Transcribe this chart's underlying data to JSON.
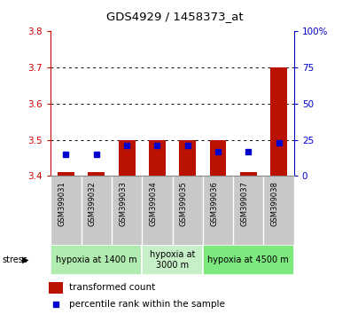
{
  "title": "GDS4929 / 1458373_at",
  "samples": [
    "GSM399031",
    "GSM399032",
    "GSM399033",
    "GSM399034",
    "GSM399035",
    "GSM399036",
    "GSM399037",
    "GSM399038"
  ],
  "red_values": [
    3.41,
    3.41,
    3.5,
    3.5,
    3.5,
    3.5,
    3.41,
    3.7
  ],
  "blue_values": [
    15,
    15,
    21,
    21,
    21,
    17,
    17,
    23
  ],
  "ylim_left": [
    3.4,
    3.8
  ],
  "ylim_right": [
    0,
    100
  ],
  "yticks_left": [
    3.4,
    3.5,
    3.6,
    3.7,
    3.8
  ],
  "yticks_right": [
    0,
    25,
    50,
    75,
    100
  ],
  "ytick_labels_right": [
    "0",
    "25",
    "50",
    "75",
    "100%"
  ],
  "groups": [
    {
      "label": "hypoxia at 1400 m",
      "start": 0,
      "end": 3,
      "color": "#b0ebb0"
    },
    {
      "label": "hypoxia at\n3000 m",
      "start": 3,
      "end": 5,
      "color": "#c8f0c8"
    },
    {
      "label": "hypoxia at 4500 m",
      "start": 5,
      "end": 8,
      "color": "#7de87d"
    }
  ],
  "stress_label": "stress",
  "legend_red": "transformed count",
  "legend_blue": "percentile rank within the sample",
  "bar_color": "#bb1100",
  "dot_color": "#0000cc",
  "bar_width": 0.55,
  "ybase": 3.4,
  "grid_color": "#000000",
  "tick_color_left": "#cc0000",
  "tick_color_right": "#0000cc",
  "sample_bg": "#c8c8c8",
  "fig_width": 3.95,
  "fig_height": 3.54,
  "dpi": 100
}
